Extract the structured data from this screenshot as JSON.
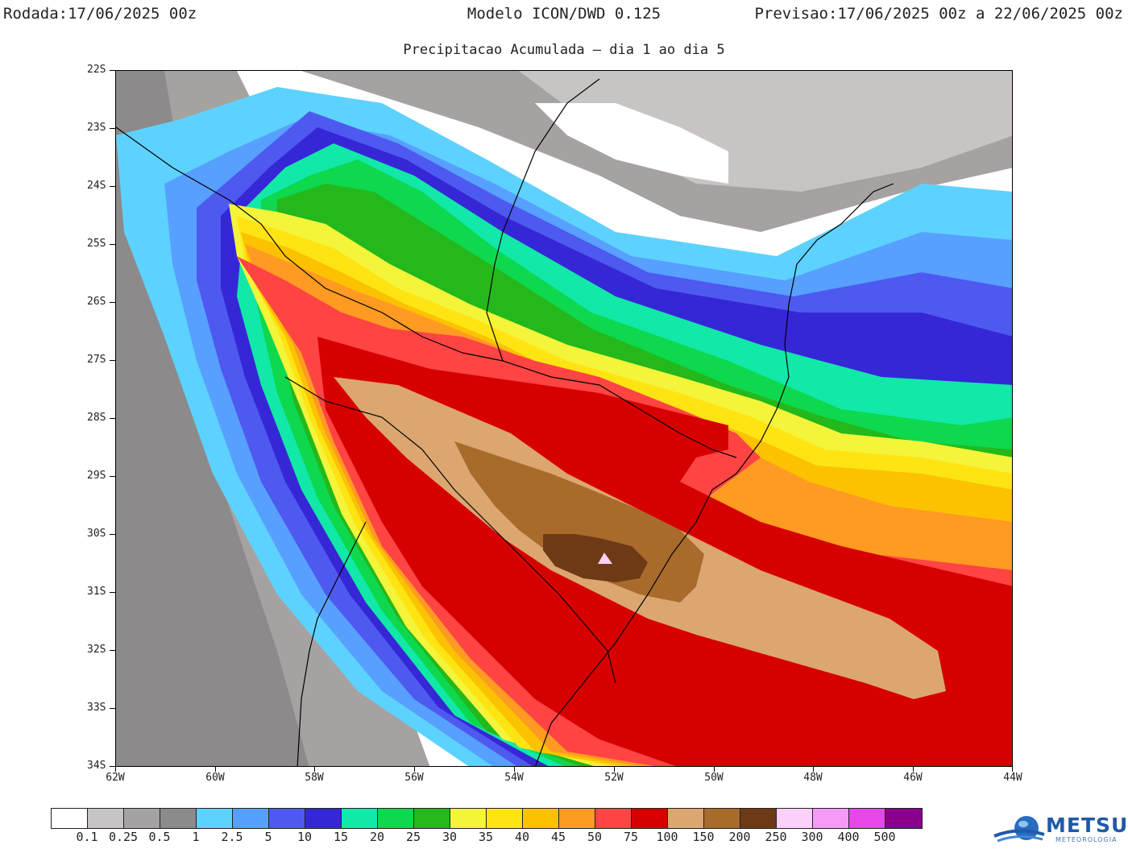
{
  "header": {
    "rodada_label": "Rodada:",
    "rodada_value": "17/06/2025 00z",
    "model": "Modelo ICON/DWD 0.125",
    "previsao_label": "Previsao:",
    "previsao_value": "17/06/2025 00z a 22/06/2025 00z",
    "subtitle": "Precipitacao Acumulada — dia 1 ao dia 5"
  },
  "axes": {
    "lat_labels": [
      "22S",
      "23S",
      "24S",
      "25S",
      "26S",
      "27S",
      "28S",
      "29S",
      "30S",
      "31S",
      "32S",
      "33S",
      "34S"
    ],
    "lon_labels": [
      "62W",
      "60W",
      "58W",
      "56W",
      "54W",
      "52W",
      "50W",
      "48W",
      "46W",
      "44W"
    ],
    "lat_range": [
      -34,
      -22
    ],
    "lon_range": [
      -62,
      -44
    ]
  },
  "colorbar": {
    "colors": [
      "#ffffff",
      "#c8c4c4",
      "#a6a2a2",
      "#8c8a8a",
      "#5ed2ff",
      "#58a0ff",
      "#4e59f0",
      "#3627d6",
      "#12e8a8",
      "#0dd84e",
      "#24b81c",
      "#f4f43a",
      "#ffe414",
      "#fcc200",
      "#ff9a22",
      "#ff4444",
      "#d60000",
      "#dca670",
      "#a86b2c",
      "#6e3a16",
      "#fbd0fb",
      "#f59bf5",
      "#e846e8",
      "#8b008b"
    ],
    "labels": [
      "0.1",
      "0.25",
      "0.5",
      "1",
      "2.5",
      "5",
      "10",
      "15",
      "20",
      "25",
      "30",
      "35",
      "40",
      "45",
      "50",
      "75",
      "100",
      "150",
      "200",
      "250",
      "300",
      "400",
      "500"
    ]
  },
  "logo": {
    "text": "METSUL",
    "sub": "METEOROLOGIA"
  }
}
